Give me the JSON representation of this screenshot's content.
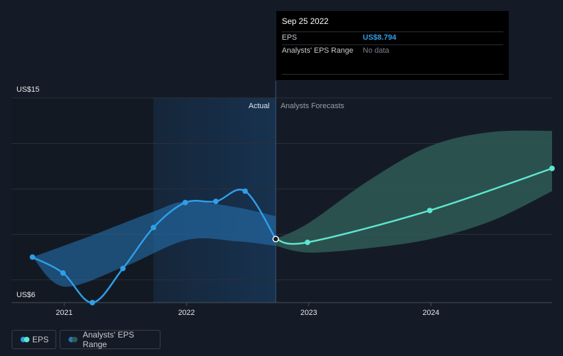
{
  "colors": {
    "background": "#151b26",
    "eps_line": "#2f9fe8",
    "forecast_line": "#5ee6d0",
    "actual_band": "#2677b8",
    "forecast_band": "#2f5a57",
    "grid": "#2a303b"
  },
  "tooltip": {
    "date": "Sep 25 2022",
    "eps_label": "EPS",
    "eps_value": "US$8.794",
    "range_label": "Analysts' EPS Range",
    "range_value": "No data"
  },
  "legend": {
    "eps_label": "EPS",
    "range_label": "Analysts' EPS Range"
  },
  "chart_data": {
    "type": "line",
    "title": "",
    "xlabel": "",
    "ylabel": "",
    "y_tick_labels": [
      "US$15",
      "US$6"
    ],
    "ylim": [
      6,
      15
    ],
    "xlim": [
      2020.57,
      2024.99
    ],
    "x_ticks": [
      {
        "value": 2021,
        "label": "2021"
      },
      {
        "value": 2022,
        "label": "2022"
      },
      {
        "value": 2023,
        "label": "2023"
      },
      {
        "value": 2024,
        "label": "2024"
      }
    ],
    "grid": true,
    "section_labels": {
      "actual": "Actual",
      "forecast": "Analysts Forecasts"
    },
    "highlight_start": 2021.73,
    "divider_x": 2022.73,
    "series": [
      {
        "name": "EPS",
        "kind": "actual",
        "points": [
          [
            2020.74,
            8.0
          ],
          [
            2020.99,
            7.3
          ],
          [
            2021.23,
            6.0
          ],
          [
            2021.48,
            7.5
          ],
          [
            2021.73,
            9.3
          ],
          [
            2021.99,
            10.4
          ],
          [
            2022.24,
            10.45
          ],
          [
            2022.48,
            10.9
          ],
          [
            2022.73,
            8.794
          ]
        ]
      },
      {
        "name": "EPS",
        "kind": "forecast",
        "points": [
          [
            2022.73,
            8.794
          ],
          [
            2022.99,
            8.65
          ],
          [
            2023.99,
            10.05
          ],
          [
            2024.99,
            11.9
          ]
        ]
      }
    ],
    "ranges": [
      {
        "name": "Analysts' EPS Range",
        "kind": "actual",
        "upper": [
          [
            2020.74,
            8.0
          ],
          [
            2021.2,
            8.9
          ],
          [
            2021.73,
            10.0
          ],
          [
            2022.0,
            10.45
          ],
          [
            2022.4,
            10.2
          ],
          [
            2022.73,
            9.8
          ]
        ],
        "lower": [
          [
            2020.74,
            8.0
          ],
          [
            2021.0,
            6.7
          ],
          [
            2021.5,
            7.6
          ],
          [
            2022.0,
            8.75
          ],
          [
            2022.4,
            8.7
          ],
          [
            2022.73,
            8.5
          ]
        ]
      },
      {
        "name": "Analysts' EPS Range",
        "kind": "forecast",
        "upper": [
          [
            2022.73,
            8.8
          ],
          [
            2023.0,
            9.5
          ],
          [
            2023.5,
            11.4
          ],
          [
            2024.0,
            12.9
          ],
          [
            2024.5,
            13.5
          ],
          [
            2024.99,
            13.55
          ]
        ],
        "lower": [
          [
            2022.73,
            8.5
          ],
          [
            2023.0,
            8.2
          ],
          [
            2023.5,
            8.4
          ],
          [
            2024.0,
            8.8
          ],
          [
            2024.5,
            9.6
          ],
          [
            2024.99,
            10.9
          ]
        ]
      }
    ]
  }
}
